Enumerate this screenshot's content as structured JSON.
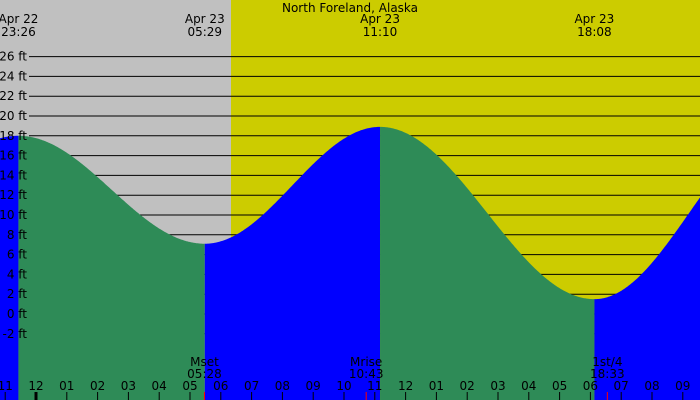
{
  "chart_data": {
    "type": "area",
    "title": "North Foreland, Alaska",
    "y_unit": "ft",
    "ylim": [
      -4,
      28
    ],
    "y_ticks": [
      26,
      24,
      22,
      20,
      18,
      16,
      14,
      12,
      10,
      8,
      6,
      4,
      2,
      0,
      -2
    ],
    "x_tick_labels": [
      "11",
      "12",
      "01",
      "02",
      "03",
      "04",
      "05",
      "06",
      "07",
      "08",
      "09",
      "10",
      "11",
      "12",
      "01",
      "02",
      "03",
      "04",
      "05",
      "06",
      "07",
      "08",
      "09"
    ],
    "x_first_tick_hour": 23,
    "tides": [
      {
        "date": "Apr 22",
        "time": "23:26",
        "hours": -0.57,
        "height_ft": 18.0,
        "kind": "high"
      },
      {
        "date": "Apr 23",
        "time": "05:29",
        "hours": 5.48,
        "height_ft": 7.1,
        "kind": "low"
      },
      {
        "date": "Apr 23",
        "time": "11:10",
        "hours": 11.17,
        "height_ft": 18.9,
        "kind": "high"
      },
      {
        "date": "Apr 23",
        "time": "18:08",
        "hours": 18.13,
        "height_ft": 1.5,
        "kind": "low"
      }
    ],
    "moon_events": [
      {
        "label": "Mset",
        "time": "05:28",
        "hours": 5.47
      },
      {
        "label": "Mrise",
        "time": "10:43",
        "hours": 10.72
      },
      {
        "label": "1st/4",
        "time": "18:33",
        "hours": 18.55
      }
    ],
    "daylight_start_hours": 6.33,
    "colors": {
      "night": "#c0c0c0",
      "day": "#cccc00",
      "falling": "#2e8b57",
      "rising": "#0000ff",
      "moon_tick": "#ff0000"
    }
  }
}
